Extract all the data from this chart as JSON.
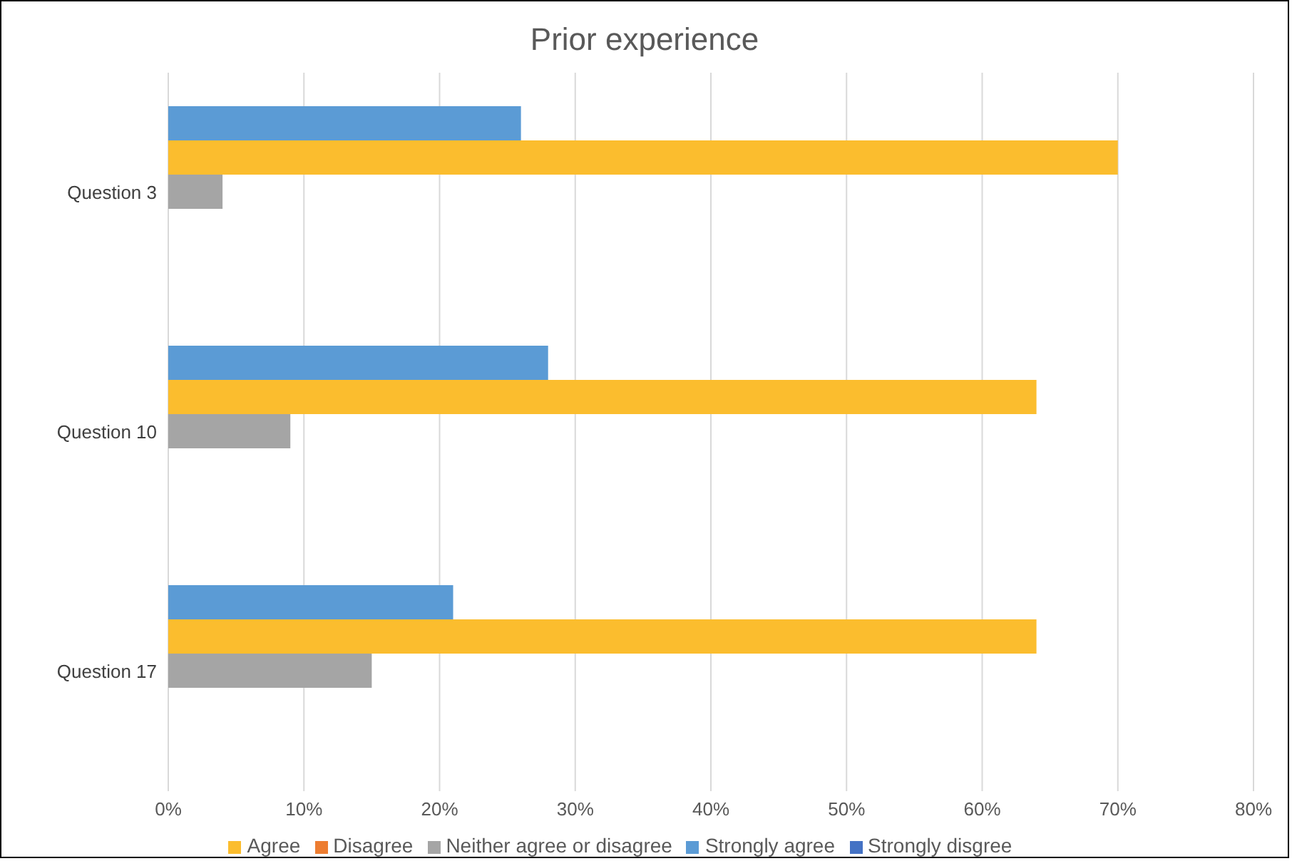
{
  "chart_data": {
    "type": "bar",
    "orientation": "horizontal",
    "title": "Prior experience",
    "categories": [
      "Question 3",
      "Question 10",
      "Question 17"
    ],
    "series": [
      {
        "name": "Strongly agree",
        "color": "#5b9bd5",
        "values": [
          26,
          28,
          21
        ]
      },
      {
        "name": "Agree",
        "color": "#fbbd2e",
        "values": [
          70,
          64,
          64
        ]
      },
      {
        "name": "Neither agree or disagree",
        "color": "#a5a5a5",
        "values": [
          4,
          9,
          15
        ]
      },
      {
        "name": "Disagree",
        "color": "#ed7d31",
        "values": [
          null,
          null,
          null
        ]
      },
      {
        "name": "Strongly disgree",
        "color": "#4472c4",
        "values": [
          null,
          null,
          null
        ]
      }
    ],
    "xlim": [
      0,
      80
    ],
    "xticks": [
      {
        "value": 0,
        "label": "0%"
      },
      {
        "value": 10,
        "label": "10%"
      },
      {
        "value": 20,
        "label": "20%"
      },
      {
        "value": 30,
        "label": "30%"
      },
      {
        "value": 40,
        "label": "40%"
      },
      {
        "value": 50,
        "label": "50%"
      },
      {
        "value": 60,
        "label": "60%"
      },
      {
        "value": 70,
        "label": "70%"
      },
      {
        "value": 80,
        "label": "80%"
      }
    ],
    "grid": "x",
    "legend": "bottom"
  }
}
